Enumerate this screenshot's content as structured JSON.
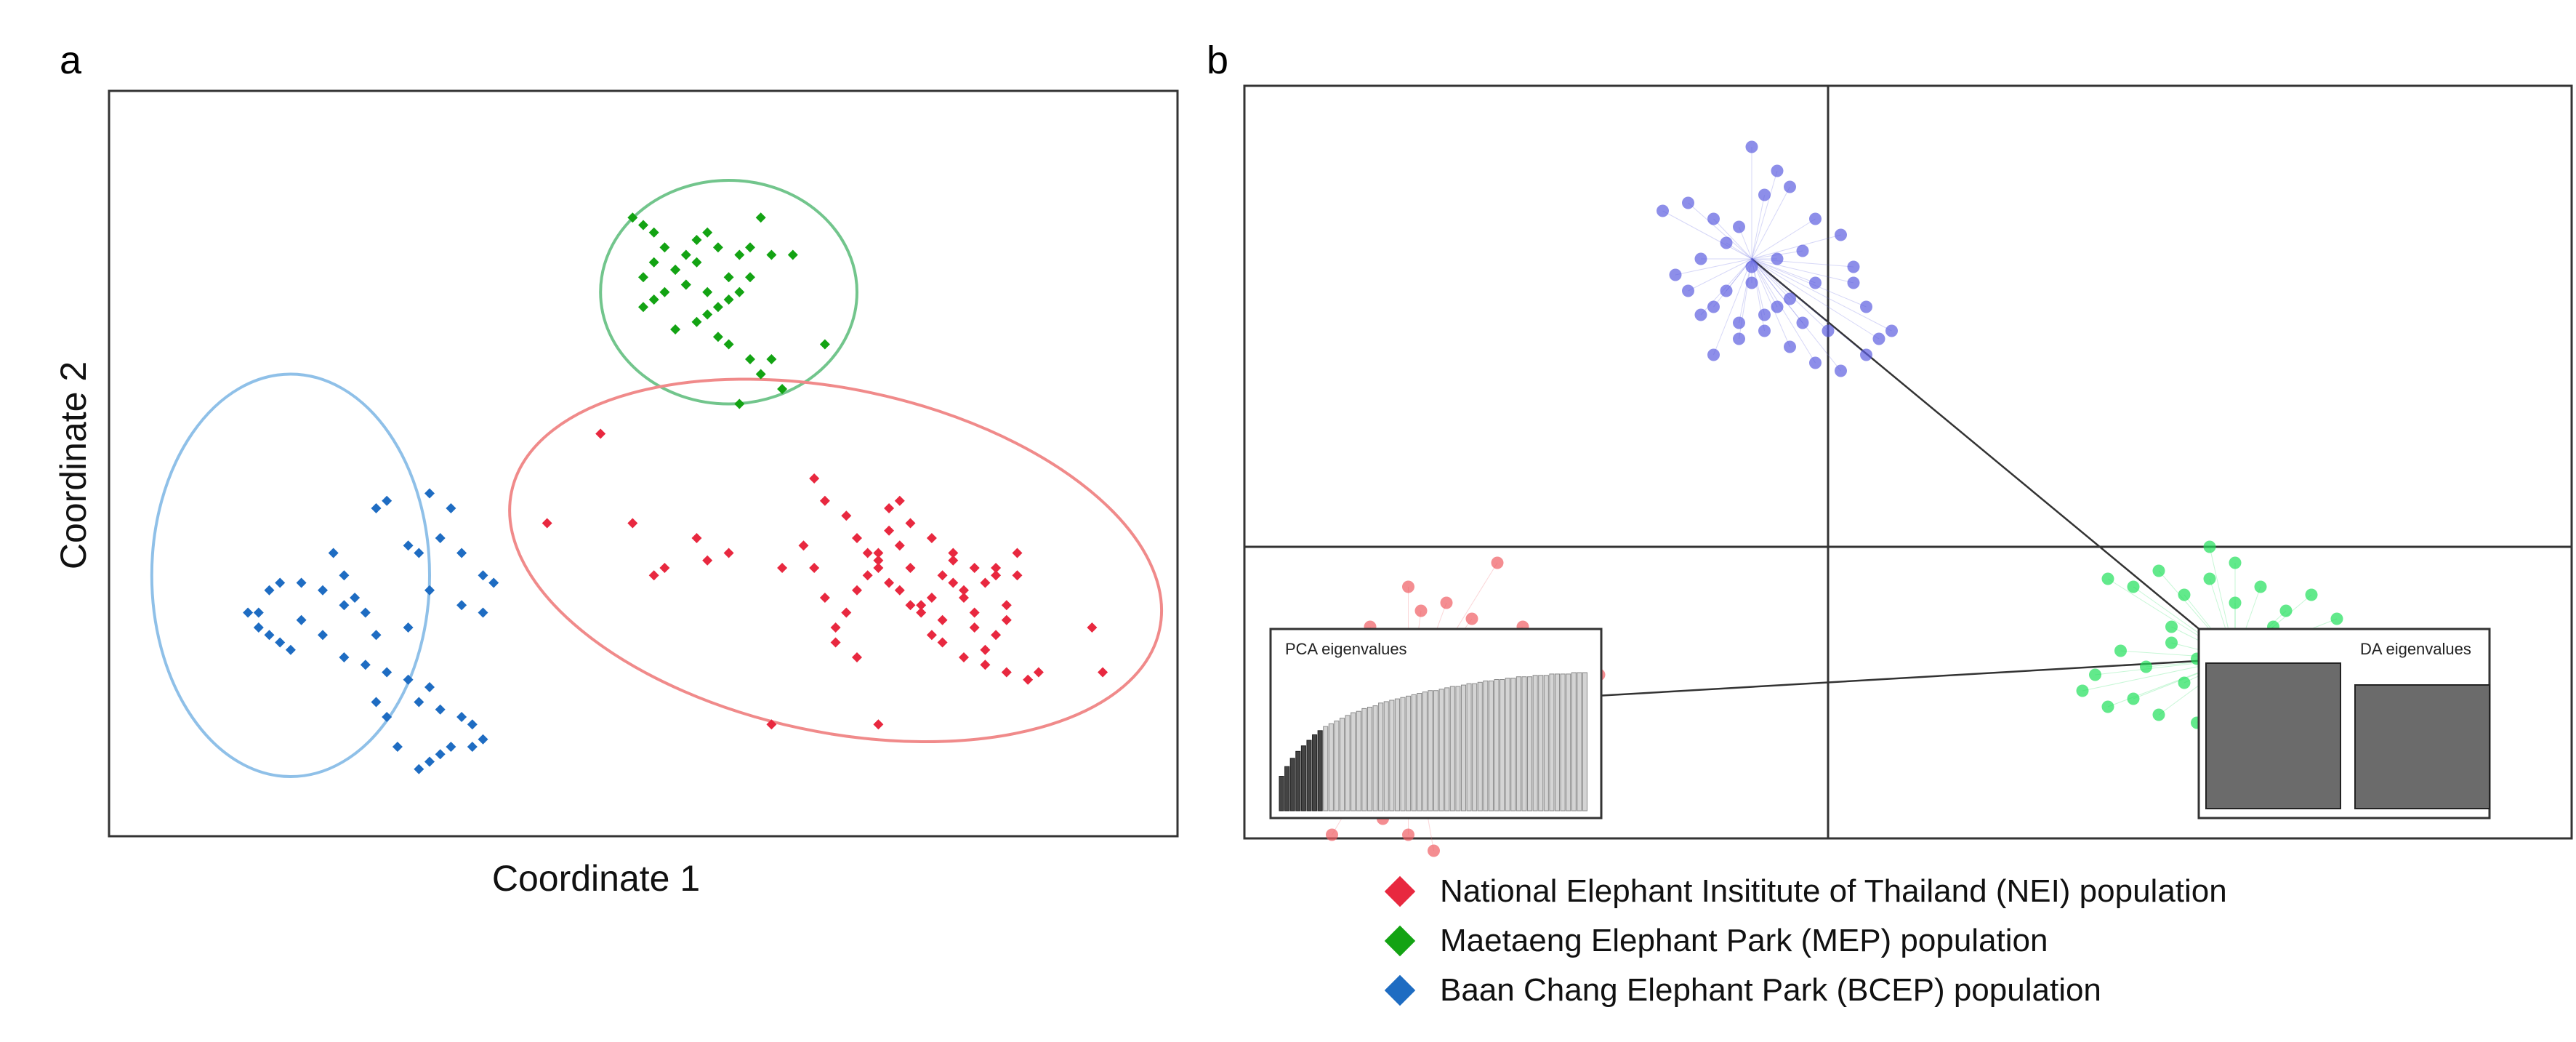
{
  "panel_a": {
    "letter": "a"
  },
  "panel_b": {
    "letter": "b"
  },
  "colors": {
    "NEI": "#e8283f",
    "MEP": "#13a313",
    "BCEP": "#1e6cc2",
    "NEI_b": "#ef5d63",
    "MEP_b": "#1fe05a",
    "BCEP_b": "#5c5ee0",
    "ellipse_NEI": "#f08a8a",
    "ellipse_MEP": "#72c58c",
    "ellipse_BCEP": "#8fc0e8"
  },
  "legend": [
    {
      "key": "NEI",
      "label": "National Elephant Insititute of Thailand (NEI) population",
      "color": "#e8283f"
    },
    {
      "key": "MEP",
      "label": "Maetaeng Elephant Park (MEP) population",
      "color": "#13a313"
    },
    {
      "key": "BCEP",
      "label": "Baan Chang Elephant Park (BCEP) population",
      "color": "#1e6cc2"
    }
  ],
  "chart_data": [
    {
      "type": "scatter",
      "title": "",
      "xlabel": "Coordinate 1",
      "ylabel": "Coordinate 2",
      "xlim": [
        0,
        100
      ],
      "ylim": [
        0,
        100
      ],
      "grid": false,
      "series": [
        {
          "name": "MEP",
          "marker": "diamond",
          "ellipse": {
            "cx": 58.0,
            "cy": 73.0,
            "rx": 12.0,
            "ry": 15.0,
            "angle": 0
          },
          "x": [
            49,
            50,
            51,
            52,
            51,
            50,
            53,
            54,
            55,
            56,
            57,
            55,
            54,
            56,
            58,
            59,
            60,
            61,
            62,
            60,
            59,
            58,
            57,
            56,
            55,
            54,
            53,
            52,
            51,
            50,
            53,
            57,
            58,
            60,
            62,
            59,
            61,
            63,
            64,
            67
          ],
          "y": [
            83,
            82,
            81,
            79,
            77,
            75,
            76,
            78,
            80,
            81,
            79,
            77,
            74,
            73,
            75,
            78,
            79,
            83,
            78,
            75,
            73,
            72,
            71,
            70,
            69,
            74,
            76,
            73,
            72,
            71,
            68,
            67,
            66,
            64,
            64,
            58,
            62,
            60,
            78,
            66
          ]
        },
        {
          "name": "NEI",
          "marker": "diamond",
          "ellipse": {
            "cx": 68.0,
            "cy": 37.0,
            "rx": 31.0,
            "ry": 23.0,
            "angle": 12
          },
          "x": [
            46,
            49,
            41,
            51,
            52,
            56,
            58,
            55,
            63,
            66,
            67,
            69,
            70,
            71,
            72,
            73,
            74,
            75,
            76,
            77,
            78,
            79,
            80,
            81,
            82,
            83,
            84,
            85,
            84,
            83,
            82,
            81,
            80,
            79,
            78,
            77,
            76,
            75,
            74,
            73,
            72,
            71,
            70,
            69,
            68,
            67,
            66,
            65,
            73,
            75,
            77,
            79,
            81,
            83,
            78,
            80,
            82,
            84,
            86,
            68,
            70,
            72,
            74,
            85,
            87,
            92,
            93,
            72,
            62
          ],
          "y": [
            54,
            42,
            42,
            35,
            36,
            37,
            38,
            40,
            36,
            48,
            45,
            43,
            40,
            38,
            36,
            34,
            33,
            31,
            30,
            32,
            35,
            37,
            33,
            30,
            34,
            36,
            31,
            35,
            29,
            27,
            25,
            28,
            32,
            34,
            29,
            27,
            31,
            36,
            39,
            41,
            38,
            35,
            33,
            30,
            28,
            32,
            36,
            39,
            44,
            42,
            40,
            38,
            36,
            35,
            26,
            24,
            23,
            22,
            21,
            26,
            24,
            37,
            45,
            38,
            22,
            28,
            22,
            15,
            15
          ]
        },
        {
          "name": "BCEP",
          "marker": "diamond",
          "ellipse": {
            "cx": 17.0,
            "cy": 35.0,
            "rx": 13.0,
            "ry": 27.0,
            "angle": 0
          },
          "x": [
            25,
            26,
            30,
            32,
            28,
            29,
            31,
            33,
            35,
            36,
            35,
            33,
            30,
            28,
            25,
            22,
            20,
            18,
            16,
            15,
            14,
            13,
            14,
            15,
            16,
            17,
            18,
            20,
            22,
            24,
            26,
            28,
            30,
            29,
            31,
            33,
            34,
            35,
            34,
            32,
            31,
            30,
            29,
            27,
            26,
            25,
            24,
            23,
            22,
            21
          ],
          "y": [
            44,
            45,
            46,
            44,
            39,
            38,
            40,
            38,
            35,
            34,
            30,
            31,
            33,
            28,
            27,
            31,
            33,
            34,
            34,
            33,
            30,
            30,
            28,
            27,
            26,
            25,
            29,
            27,
            24,
            23,
            22,
            21,
            20,
            18,
            17,
            16,
            15,
            13,
            12,
            12,
            11,
            10,
            9,
            12,
            16,
            18,
            30,
            32,
            35,
            38
          ]
        }
      ]
    },
    {
      "type": "scatter",
      "title": "",
      "xlabel": "",
      "ylabel": "",
      "xlim": [
        -5,
        5
      ],
      "ylim": [
        -5,
        5
      ],
      "grid": true,
      "series": [
        {
          "name": "BCEP",
          "marker": "circle",
          "centroid": [
            -0.6,
            3.6
          ],
          "x": [
            -1.3,
            -1.1,
            -0.9,
            -0.7,
            -0.5,
            -0.3,
            -0.1,
            0.1,
            -0.2,
            -0.4,
            -0.6,
            -0.8,
            -1.0,
            -1.2,
            -1.1,
            -0.9,
            -0.7,
            -0.5,
            -0.3,
            -0.1,
            0.2,
            0.3,
            0.4,
            0.5,
            0.3,
            0.1,
            -0.1,
            -0.3,
            -0.5,
            -0.7,
            -0.9,
            -1.0,
            -0.8,
            -0.6,
            -0.4,
            -0.2,
            0.0,
            0.2,
            -0.6,
            -0.4
          ],
          "y": [
            4.2,
            4.3,
            4.1,
            4.0,
            4.4,
            4.5,
            4.1,
            3.9,
            3.7,
            3.6,
            3.5,
            3.8,
            3.6,
            3.4,
            3.2,
            3.0,
            2.8,
            2.9,
            3.1,
            3.3,
            3.5,
            3.0,
            2.6,
            2.7,
            2.4,
            2.2,
            2.3,
            2.5,
            2.7,
            2.6,
            2.4,
            2.9,
            3.2,
            3.3,
            3.0,
            2.8,
            2.7,
            3.3,
            5.0,
            4.7
          ]
        },
        {
          "name": "MEP",
          "marker": "circle",
          "centroid": [
            3.2,
            -1.4
          ],
          "x": [
            2.2,
            2.4,
            2.6,
            2.8,
            3.0,
            3.2,
            3.4,
            3.6,
            3.8,
            4.0,
            3.9,
            3.7,
            3.5,
            3.3,
            3.1,
            2.9,
            2.7,
            2.5,
            2.3,
            2.1,
            2.0,
            2.2,
            2.4,
            2.6,
            2.8,
            3.0,
            3.2,
            3.4,
            3.6,
            3.8,
            3.5,
            3.3,
            3.1,
            2.9,
            2.7,
            3.0,
            3.2,
            3.4
          ],
          "y": [
            -0.4,
            -0.5,
            -0.3,
            -0.6,
            -0.4,
            -0.7,
            -0.5,
            -0.8,
            -0.6,
            -0.9,
            -1.1,
            -1.2,
            -1.0,
            -1.3,
            -1.1,
            -1.4,
            -1.2,
            -1.5,
            -1.3,
            -1.6,
            -1.8,
            -2.0,
            -1.9,
            -2.1,
            -1.7,
            -1.9,
            -2.0,
            -1.8,
            -2.2,
            -2.1,
            -2.3,
            -2.5,
            -2.4,
            -2.2,
            -1.0,
            0.0,
            -0.2,
            -1.6
          ]
        },
        {
          "name": "NEI",
          "marker": "circle",
          "centroid": [
            -3.3,
            -2.0
          ],
          "x": [
            -3.6,
            -3.4,
            -3.2,
            -3.0,
            -2.8,
            -2.6,
            -2.4,
            -2.2,
            -2.0,
            -1.8,
            -2.1,
            -2.3,
            -2.5,
            -2.7,
            -2.9,
            -3.1,
            -3.3,
            -3.5,
            -3.7,
            -3.9,
            -4.0,
            -3.8,
            -3.6,
            -3.4,
            -3.2,
            -3.0,
            -2.8,
            -2.6,
            -2.4,
            -2.2,
            -2.5,
            -2.7,
            -2.9,
            -3.1,
            -3.3,
            -3.5,
            -3.7,
            -3.9,
            -4.1,
            -3.8,
            -3.6,
            -3.4,
            -3.2,
            -3.0,
            -2.8,
            -3.3,
            -3.1,
            -2.9,
            -3.5,
            -3.7,
            -4.1,
            -3.9,
            -3.3,
            -3.0,
            -2.6
          ],
          "y": [
            -1.0,
            -1.1,
            -0.8,
            -1.2,
            -0.9,
            -1.3,
            -1.0,
            -1.4,
            -1.2,
            -1.6,
            -1.8,
            -1.5,
            -1.7,
            -1.4,
            -1.6,
            -1.3,
            -1.5,
            -1.6,
            -1.4,
            -1.8,
            -2.0,
            -2.1,
            -1.9,
            -2.2,
            -2.0,
            -2.3,
            -2.1,
            -2.4,
            -2.2,
            -2.5,
            -2.7,
            -2.6,
            -2.8,
            -2.5,
            -2.7,
            -2.4,
            -2.6,
            -2.3,
            -2.9,
            -3.0,
            -3.2,
            -3.1,
            -2.9,
            -3.3,
            -3.0,
            -3.6,
            -3.8,
            -2.0,
            -3.4,
            -2.8,
            -3.3,
            -3.6,
            -0.5,
            -0.7,
            -0.2
          ]
        }
      ],
      "insets": [
        {
          "title": "PCA eigenvalues",
          "type": "bar",
          "position": "bottom-left",
          "retained": 8,
          "values": [
            0.25,
            0.32,
            0.38,
            0.43,
            0.47,
            0.51,
            0.55,
            0.58,
            0.61,
            0.63,
            0.65,
            0.67,
            0.69,
            0.71,
            0.72,
            0.74,
            0.75,
            0.76,
            0.78,
            0.79,
            0.8,
            0.81,
            0.82,
            0.83,
            0.84,
            0.85,
            0.86,
            0.87,
            0.87,
            0.88,
            0.89,
            0.9,
            0.9,
            0.91,
            0.92,
            0.92,
            0.93,
            0.94,
            0.94,
            0.95,
            0.95,
            0.96,
            0.96,
            0.97,
            0.97,
            0.97,
            0.98,
            0.98,
            0.98,
            0.99,
            0.99,
            0.99,
            0.99,
            1.0,
            1.0,
            1.0
          ]
        },
        {
          "title": "DA eigenvalues",
          "type": "bar",
          "position": "bottom-right",
          "values": [
            1.0,
            0.85
          ]
        }
      ]
    }
  ]
}
